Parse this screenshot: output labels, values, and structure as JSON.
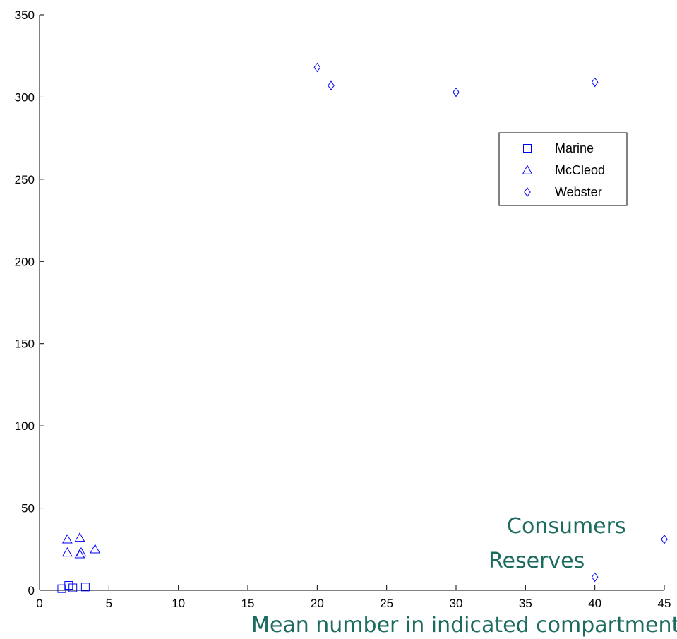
{
  "chart_data": {
    "type": "scatter",
    "title": "",
    "xlabel": "Mean number in indicated compartment",
    "ylabel": "",
    "xlim": [
      0,
      45
    ],
    "ylim": [
      0,
      350
    ],
    "xticks": [
      "0",
      "5",
      "10",
      "15",
      "20",
      "25",
      "30",
      "35",
      "40",
      "45"
    ],
    "yticks": [
      "0",
      "50",
      "100",
      "150",
      "200",
      "250",
      "300",
      "350"
    ],
    "grid": false,
    "legend_position": "top-right",
    "series": [
      {
        "name": "Marine",
        "marker": "square",
        "x": [
          1.6,
          2.1,
          2.4,
          3.3
        ],
        "y": [
          1,
          3,
          1.5,
          2
        ]
      },
      {
        "name": "McCleod",
        "marker": "triangle",
        "x": [
          2.0,
          2.0,
          2.9,
          2.9,
          3.0,
          4.0
        ],
        "y": [
          31,
          23,
          32,
          22,
          23,
          25
        ]
      },
      {
        "name": "Webster",
        "marker": "diamond",
        "x": [
          20,
          21,
          30,
          40,
          40,
          45
        ],
        "y": [
          318,
          307,
          303,
          309,
          8,
          31
        ]
      }
    ],
    "annotations": [
      "Consumers",
      "Reserves"
    ],
    "colors": {
      "marker": "#0000ff",
      "annotation": "#1b6b5f",
      "axis": "#000000"
    }
  }
}
